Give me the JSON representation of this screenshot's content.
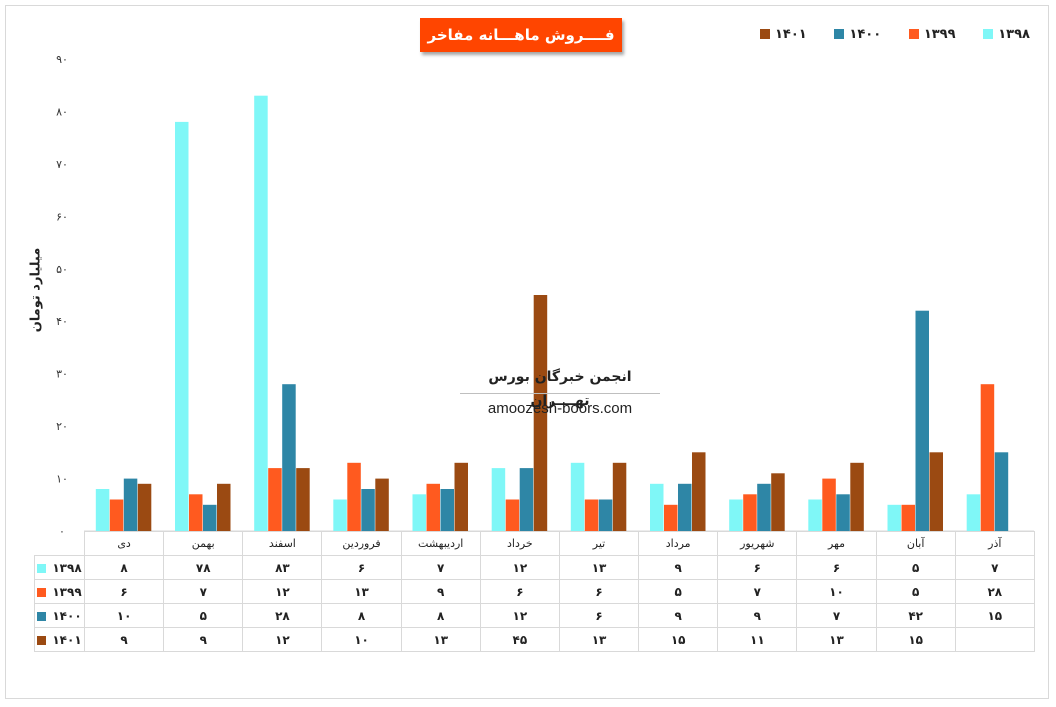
{
  "chart_data": {
    "type": "bar",
    "title": "فــــروش ماهـــانه مفاخر",
    "ylabel": "میلیارد تومان",
    "ylim": [
      0,
      90
    ],
    "yticks": [
      "۰",
      "۱۰",
      "۲۰",
      "۳۰",
      "۴۰",
      "۵۰",
      "۶۰",
      "۷۰",
      "۸۰",
      "۹۰"
    ],
    "yticks_values": [
      0,
      10,
      20,
      30,
      40,
      50,
      60,
      70,
      80,
      90
    ],
    "categories": [
      "دی",
      "بهمن",
      "اسفند",
      "فروردین",
      "اردیبهشت",
      "خرداد",
      "تیر",
      "مرداد",
      "شهریور",
      "مهر",
      "آبان",
      "آذر"
    ],
    "legend_position": "top-right",
    "grid": false,
    "series": [
      {
        "name": "۱۳۹۸",
        "color": "#7ff7f7",
        "values": [
          8,
          78,
          83,
          6,
          7,
          12,
          13,
          9,
          6,
          6,
          5,
          7
        ],
        "labels": [
          "۸",
          "۷۸",
          "۸۳",
          "۶",
          "۷",
          "۱۲",
          "۱۳",
          "۹",
          "۶",
          "۶",
          "۵",
          "۷"
        ]
      },
      {
        "name": "۱۳۹۹",
        "color": "#ff5a1f",
        "values": [
          6,
          7,
          12,
          13,
          9,
          6,
          6,
          5,
          7,
          10,
          5,
          28
        ],
        "labels": [
          "۶",
          "۷",
          "۱۲",
          "۱۳",
          "۹",
          "۶",
          "۶",
          "۵",
          "۷",
          "۱۰",
          "۵",
          "۲۸"
        ]
      },
      {
        "name": "۱۴۰۰",
        "color": "#2e86a6",
        "values": [
          10,
          5,
          28,
          8,
          8,
          12,
          6,
          9,
          9,
          7,
          42,
          15
        ],
        "labels": [
          "۱۰",
          "۵",
          "۲۸",
          "۸",
          "۸",
          "۱۲",
          "۶",
          "۹",
          "۹",
          "۷",
          "۴۲",
          "۱۵"
        ]
      },
      {
        "name": "۱۴۰۱",
        "color": "#9b4a12",
        "values": [
          9,
          9,
          12,
          10,
          13,
          45,
          13,
          15,
          11,
          13,
          15,
          null
        ],
        "labels": [
          "۹",
          "۹",
          "۱۲",
          "۱۰",
          "۱۳",
          "۴۵",
          "۱۳",
          "۱۵",
          "۱۱",
          "۱۳",
          "۱۵",
          ""
        ]
      }
    ]
  },
  "watermark": {
    "title": "انجمن خبرگان بورس تهــــران",
    "url": "amoozesh-boors.com"
  }
}
